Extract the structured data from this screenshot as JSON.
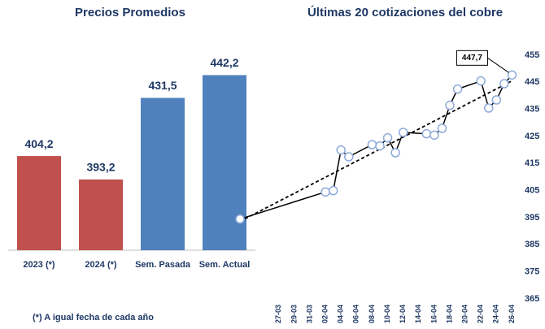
{
  "chart_data": [
    {
      "type": "bar",
      "title": "Precios Promedios",
      "categories": [
        "2023 (*)",
        "2024 (*)",
        "Sem. Pasada",
        "Sem. Actual"
      ],
      "values": [
        404.2,
        393.2,
        431.5,
        442.2
      ],
      "value_labels": [
        "404,2",
        "393,2",
        "431,5",
        "442,2"
      ],
      "colors": [
        "#c0504d",
        "#c0504d",
        "#4f81bd",
        "#4f81bd"
      ],
      "ylim": [
        360,
        450
      ],
      "footnote": "(*) A igual fecha de cada año"
    },
    {
      "type": "line",
      "title": "Últimas 20 cotizaciones del cobre",
      "x": [
        "22-03",
        "02-04",
        "03-04",
        "04-04",
        "05-04",
        "08-04",
        "09-04",
        "10-04",
        "11-04",
        "12-04",
        "15-04",
        "16-04",
        "17-04",
        "18-04",
        "19-04",
        "22-04",
        "23-04",
        "24-04",
        "25-04",
        "26-04"
      ],
      "series": [
        {
          "name": "Cobre",
          "color": "#000000",
          "values": [
            394.5,
            404.5,
            405,
            420,
            417.5,
            422,
            421.5,
            424.5,
            419,
            426.5,
            426,
            425.5,
            428,
            436.5,
            442.5,
            445.5,
            435.5,
            438.5,
            444.5,
            447.7
          ],
          "value_labels": [
            null,
            null,
            null,
            null,
            null,
            null,
            null,
            null,
            null,
            null,
            null,
            null,
            null,
            null,
            null,
            null,
            null,
            null,
            null,
            "447,7"
          ]
        }
      ],
      "trendline": true,
      "xlim": [
        "22-03",
        "27-04"
      ],
      "xticks": [
        "27-03",
        "29-03",
        "31-03",
        "02-04",
        "04-04",
        "06-04",
        "08-04",
        "10-04",
        "12-04",
        "14-04",
        "16-04",
        "18-04",
        "20-04",
        "22-04",
        "24-04",
        "26-04"
      ],
      "ylim": [
        365,
        455
      ],
      "yticks": [
        365,
        375,
        385,
        395,
        405,
        415,
        425,
        435,
        445,
        455
      ]
    }
  ]
}
